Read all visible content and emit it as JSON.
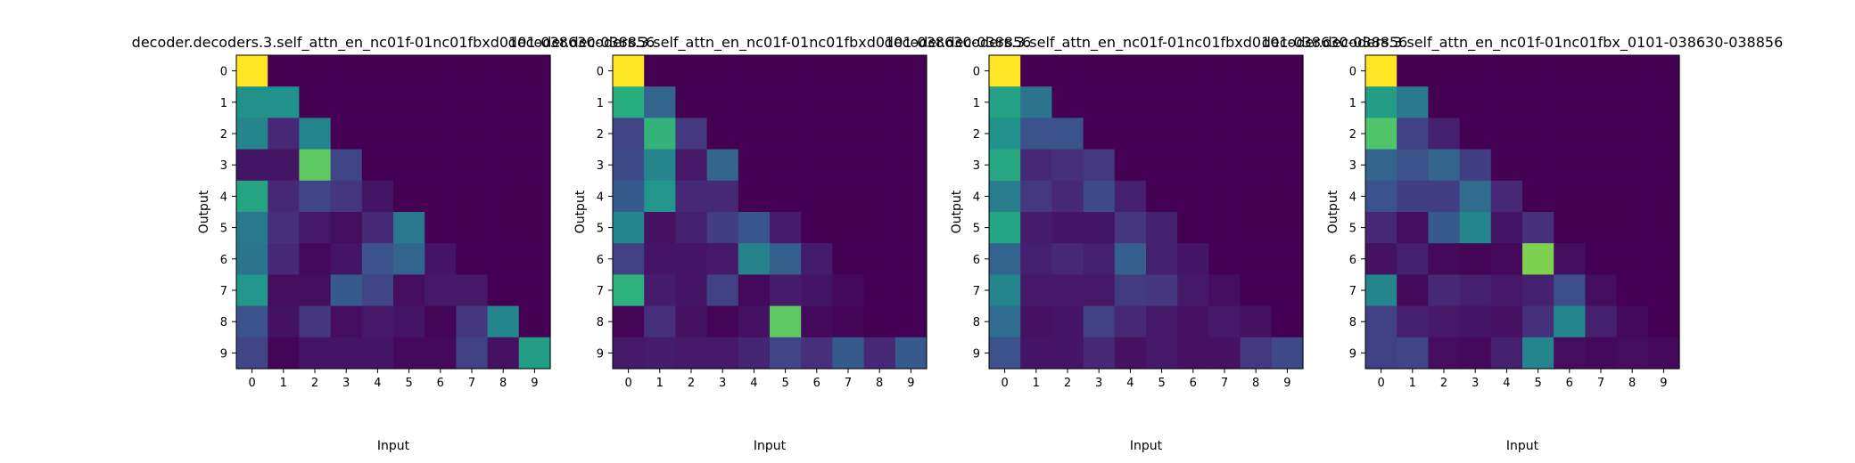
{
  "chart_data": [
    {
      "type": "heatmap",
      "title": "decoder.decoders.3.self_attn_en_nc01f-01nc01fbxd0101-038630-038856",
      "xlabel": "Input",
      "ylabel": "Output",
      "x_ticks": [
        "0",
        "1",
        "2",
        "3",
        "4",
        "5",
        "6",
        "7",
        "8",
        "9"
      ],
      "y_ticks": [
        "0",
        "1",
        "2",
        "3",
        "4",
        "5",
        "6",
        "7",
        "8",
        "9"
      ],
      "colormap": "viridis",
      "values": [
        [
          1.0,
          0.0,
          0.0,
          0.0,
          0.0,
          0.0,
          0.0,
          0.0,
          0.0,
          0.0
        ],
        [
          0.5,
          0.5,
          0.0,
          0.0,
          0.0,
          0.0,
          0.0,
          0.0,
          0.0,
          0.0
        ],
        [
          0.45,
          0.1,
          0.45,
          0.0,
          0.0,
          0.0,
          0.0,
          0.0,
          0.0,
          0.0
        ],
        [
          0.05,
          0.05,
          0.75,
          0.2,
          0.0,
          0.0,
          0.0,
          0.0,
          0.0,
          0.0
        ],
        [
          0.58,
          0.1,
          0.2,
          0.14,
          0.05,
          0.0,
          0.0,
          0.0,
          0.0,
          0.0
        ],
        [
          0.4,
          0.12,
          0.06,
          0.03,
          0.1,
          0.4,
          0.0,
          0.0,
          0.0,
          0.0
        ],
        [
          0.38,
          0.1,
          0.02,
          0.05,
          0.25,
          0.32,
          0.05,
          0.0,
          0.0,
          0.0
        ],
        [
          0.52,
          0.03,
          0.03,
          0.28,
          0.2,
          0.03,
          0.06,
          0.06,
          0.0,
          0.0
        ],
        [
          0.25,
          0.04,
          0.14,
          0.03,
          0.06,
          0.05,
          0.01,
          0.14,
          0.45,
          0.0
        ],
        [
          0.2,
          0.01,
          0.05,
          0.05,
          0.05,
          0.02,
          0.02,
          0.18,
          0.04,
          0.55
        ]
      ]
    },
    {
      "type": "heatmap",
      "title": "decoder.decoders.3.self_attn_en_nc01f-01nc01fbxd0101-038630-038856",
      "xlabel": "Input",
      "ylabel": "Output",
      "x_ticks": [
        "0",
        "1",
        "2",
        "3",
        "4",
        "5",
        "6",
        "7",
        "8",
        "9"
      ],
      "y_ticks": [
        "0",
        "1",
        "2",
        "3",
        "4",
        "5",
        "6",
        "7",
        "8",
        "9"
      ],
      "colormap": "viridis",
      "values": [
        [
          1.0,
          0.0,
          0.0,
          0.0,
          0.0,
          0.0,
          0.0,
          0.0,
          0.0,
          0.0
        ],
        [
          0.62,
          0.32,
          0.0,
          0.0,
          0.0,
          0.0,
          0.0,
          0.0,
          0.0,
          0.0
        ],
        [
          0.2,
          0.65,
          0.15,
          0.0,
          0.0,
          0.0,
          0.0,
          0.0,
          0.0,
          0.0
        ],
        [
          0.22,
          0.45,
          0.06,
          0.32,
          0.0,
          0.0,
          0.0,
          0.0,
          0.0,
          0.0
        ],
        [
          0.28,
          0.52,
          0.1,
          0.1,
          0.0,
          0.0,
          0.0,
          0.0,
          0.0,
          0.0
        ],
        [
          0.45,
          0.04,
          0.08,
          0.17,
          0.26,
          0.07,
          0.0,
          0.0,
          0.0,
          0.0
        ],
        [
          0.18,
          0.05,
          0.05,
          0.06,
          0.44,
          0.3,
          0.07,
          0.0,
          0.0,
          0.0
        ],
        [
          0.64,
          0.07,
          0.05,
          0.18,
          0.02,
          0.07,
          0.05,
          0.02,
          0.0,
          0.0
        ],
        [
          0.01,
          0.12,
          0.04,
          0.01,
          0.04,
          0.75,
          0.02,
          0.01,
          0.0,
          0.0
        ],
        [
          0.06,
          0.07,
          0.06,
          0.06,
          0.09,
          0.2,
          0.12,
          0.28,
          0.1,
          0.28
        ]
      ]
    },
    {
      "type": "heatmap",
      "title": "decoder.decoders.3.self_attn_en_nc01f-01nc01fbxd0101-038630-038856",
      "xlabel": "Input",
      "ylabel": "Output",
      "x_ticks": [
        "0",
        "1",
        "2",
        "3",
        "4",
        "5",
        "6",
        "7",
        "8",
        "9"
      ],
      "y_ticks": [
        "0",
        "1",
        "2",
        "3",
        "4",
        "5",
        "6",
        "7",
        "8",
        "9"
      ],
      "colormap": "viridis",
      "values": [
        [
          1.0,
          0.0,
          0.0,
          0.0,
          0.0,
          0.0,
          0.0,
          0.0,
          0.0,
          0.0
        ],
        [
          0.57,
          0.38,
          0.0,
          0.0,
          0.0,
          0.0,
          0.0,
          0.0,
          0.0,
          0.0
        ],
        [
          0.5,
          0.25,
          0.25,
          0.0,
          0.0,
          0.0,
          0.0,
          0.0,
          0.0,
          0.0
        ],
        [
          0.6,
          0.1,
          0.12,
          0.15,
          0.0,
          0.0,
          0.0,
          0.0,
          0.0,
          0.0
        ],
        [
          0.42,
          0.15,
          0.1,
          0.22,
          0.08,
          0.0,
          0.0,
          0.0,
          0.0,
          0.0
        ],
        [
          0.58,
          0.07,
          0.05,
          0.05,
          0.14,
          0.08,
          0.0,
          0.0,
          0.0,
          0.0
        ],
        [
          0.32,
          0.08,
          0.1,
          0.08,
          0.3,
          0.08,
          0.05,
          0.0,
          0.0,
          0.0
        ],
        [
          0.45,
          0.06,
          0.06,
          0.06,
          0.16,
          0.14,
          0.06,
          0.03,
          0.0,
          0.0
        ],
        [
          0.35,
          0.04,
          0.05,
          0.18,
          0.1,
          0.06,
          0.04,
          0.06,
          0.04,
          0.0
        ],
        [
          0.25,
          0.05,
          0.05,
          0.1,
          0.04,
          0.06,
          0.04,
          0.04,
          0.15,
          0.22
        ]
      ]
    },
    {
      "type": "heatmap",
      "title": "decoder.decoders.3.self_attn_en_nc01f-01nc01fbx_0101-038630-038856",
      "xlabel": "Input",
      "ylabel": "Output",
      "x_ticks": [
        "0",
        "1",
        "2",
        "3",
        "4",
        "5",
        "6",
        "7",
        "8",
        "9"
      ],
      "y_ticks": [
        "0",
        "1",
        "2",
        "3",
        "4",
        "5",
        "6",
        "7",
        "8",
        "9"
      ],
      "colormap": "viridis",
      "values": [
        [
          1.0,
          0.0,
          0.0,
          0.0,
          0.0,
          0.0,
          0.0,
          0.0,
          0.0,
          0.0
        ],
        [
          0.55,
          0.4,
          0.0,
          0.0,
          0.0,
          0.0,
          0.0,
          0.0,
          0.0,
          0.0
        ],
        [
          0.72,
          0.18,
          0.08,
          0.0,
          0.0,
          0.0,
          0.0,
          0.0,
          0.0,
          0.0
        ],
        [
          0.32,
          0.25,
          0.32,
          0.17,
          0.0,
          0.0,
          0.0,
          0.0,
          0.0,
          0.0
        ],
        [
          0.25,
          0.17,
          0.17,
          0.35,
          0.1,
          0.0,
          0.0,
          0.0,
          0.0,
          0.0
        ],
        [
          0.1,
          0.03,
          0.28,
          0.45,
          0.05,
          0.12,
          0.0,
          0.0,
          0.0,
          0.0
        ],
        [
          0.04,
          0.08,
          0.02,
          0.01,
          0.02,
          0.8,
          0.03,
          0.0,
          0.0,
          0.0
        ],
        [
          0.45,
          0.02,
          0.1,
          0.08,
          0.06,
          0.08,
          0.24,
          0.03,
          0.0,
          0.0
        ],
        [
          0.18,
          0.08,
          0.06,
          0.05,
          0.04,
          0.12,
          0.46,
          0.08,
          0.02,
          0.0
        ],
        [
          0.18,
          0.2,
          0.03,
          0.02,
          0.08,
          0.45,
          0.03,
          0.02,
          0.03,
          0.02
        ]
      ]
    }
  ]
}
